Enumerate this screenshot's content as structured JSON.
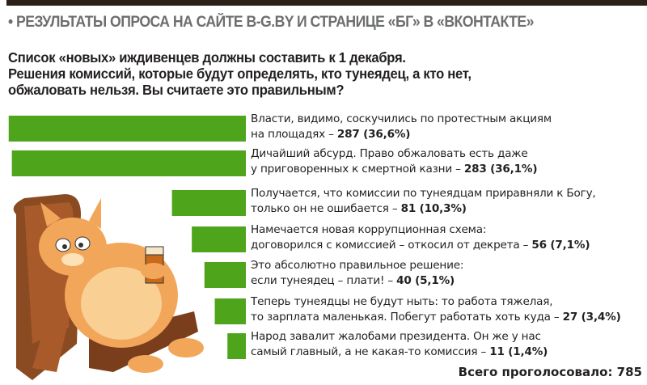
{
  "header": {
    "kicker": "• РЕЗУЛЬТАТЫ ОПРОСА НА САЙТЕ B-G.BY И СТРАНИЦЕ «БГ» В «ВКОНТАКТЕ»"
  },
  "question": [
    "Список «новых» иждивенцев должны составить к 1 декабря.",
    "Решения комиссий, которые будут определять, кто тунеядец, а кто нет,",
    "обжаловать нельзя. Вы считаете это правильным?"
  ],
  "chart_data": {
    "type": "bar",
    "orientation": "horizontal",
    "bar_color": "#4ea51b",
    "categories": [
      [
        "Власти, видимо, соскучились по протестным акциям",
        "на площадях –"
      ],
      [
        "Дичайший абсурд. Право обжаловать есть даже",
        "у приговоренных к смертной казни –"
      ],
      [
        "Получается, что комиссии по тунеядцам приравняли к Богу,",
        "только он не ошибается –"
      ],
      [
        "Намечается новая коррупционная схема:",
        "договорился с комиссией – откосил от декрета –"
      ],
      [
        "Это абсолютно правильное решение:",
        "если тунеядец – плати! –"
      ],
      [
        "Теперь тунеядцы не будут ныть: то работа тяжелая,",
        "то зарплата маленькая. Побегут работать хоть куда –"
      ],
      [
        "Народ завалит жалобами президента. Он же у нас",
        "самый главный, а не какая-то комиссия –"
      ]
    ],
    "values": [
      287,
      283,
      81,
      56,
      40,
      27,
      11
    ],
    "data_labels": [
      "287 (36,6%)",
      "283 (36,1%)",
      "81 (10,3%)",
      "56 (7,1%)",
      "40 (5,1%)",
      "27 (3,4%)",
      "11 (1,4%)"
    ],
    "percent": [
      36.6,
      36.1,
      10.3,
      7.1,
      5.1,
      3.4,
      1.4
    ]
  },
  "footer": {
    "total": "Всего проголосовало: 785"
  }
}
